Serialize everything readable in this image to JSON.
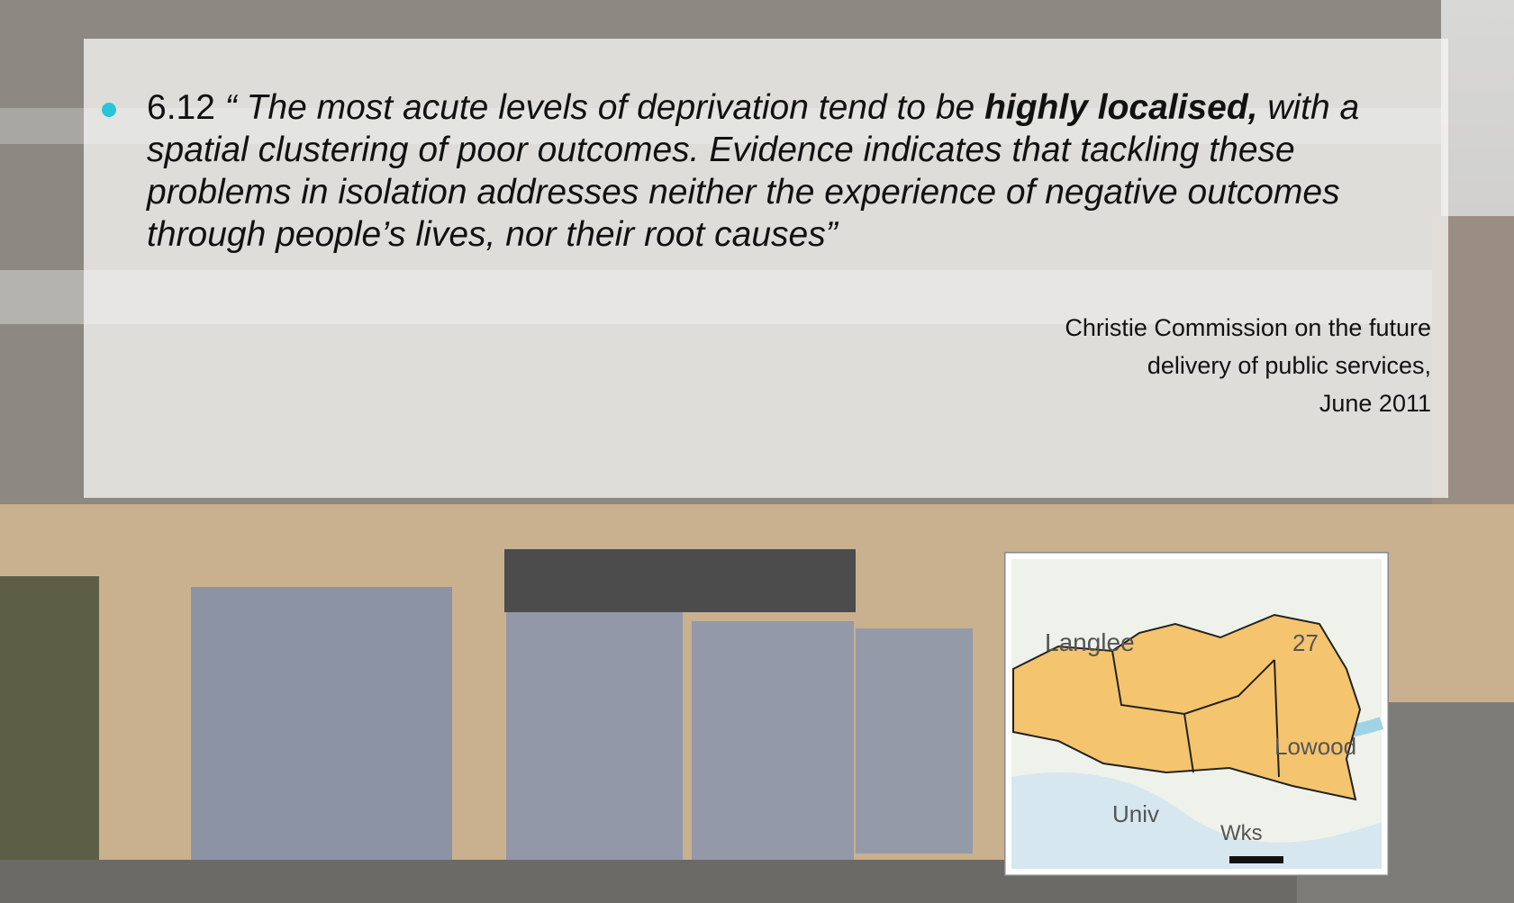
{
  "slide": {
    "bullet": {
      "number": "6.12",
      "quote_start": "“ The most acute levels of deprivation tend to be ",
      "emphasis": "highly localised,",
      "quote_end": " with a spatial clustering of poor outcomes.  Evidence indicates that tackling these problems in isolation addresses neither the experience of negative outcomes through people’s lives, nor their root causes”"
    },
    "attribution": [
      "Christie Commission on the future",
      "delivery of public services,",
      "June 2011"
    ],
    "map": {
      "labels": [
        "Langlee",
        "27",
        "Lowood",
        "Univ",
        "Wks"
      ]
    }
  }
}
